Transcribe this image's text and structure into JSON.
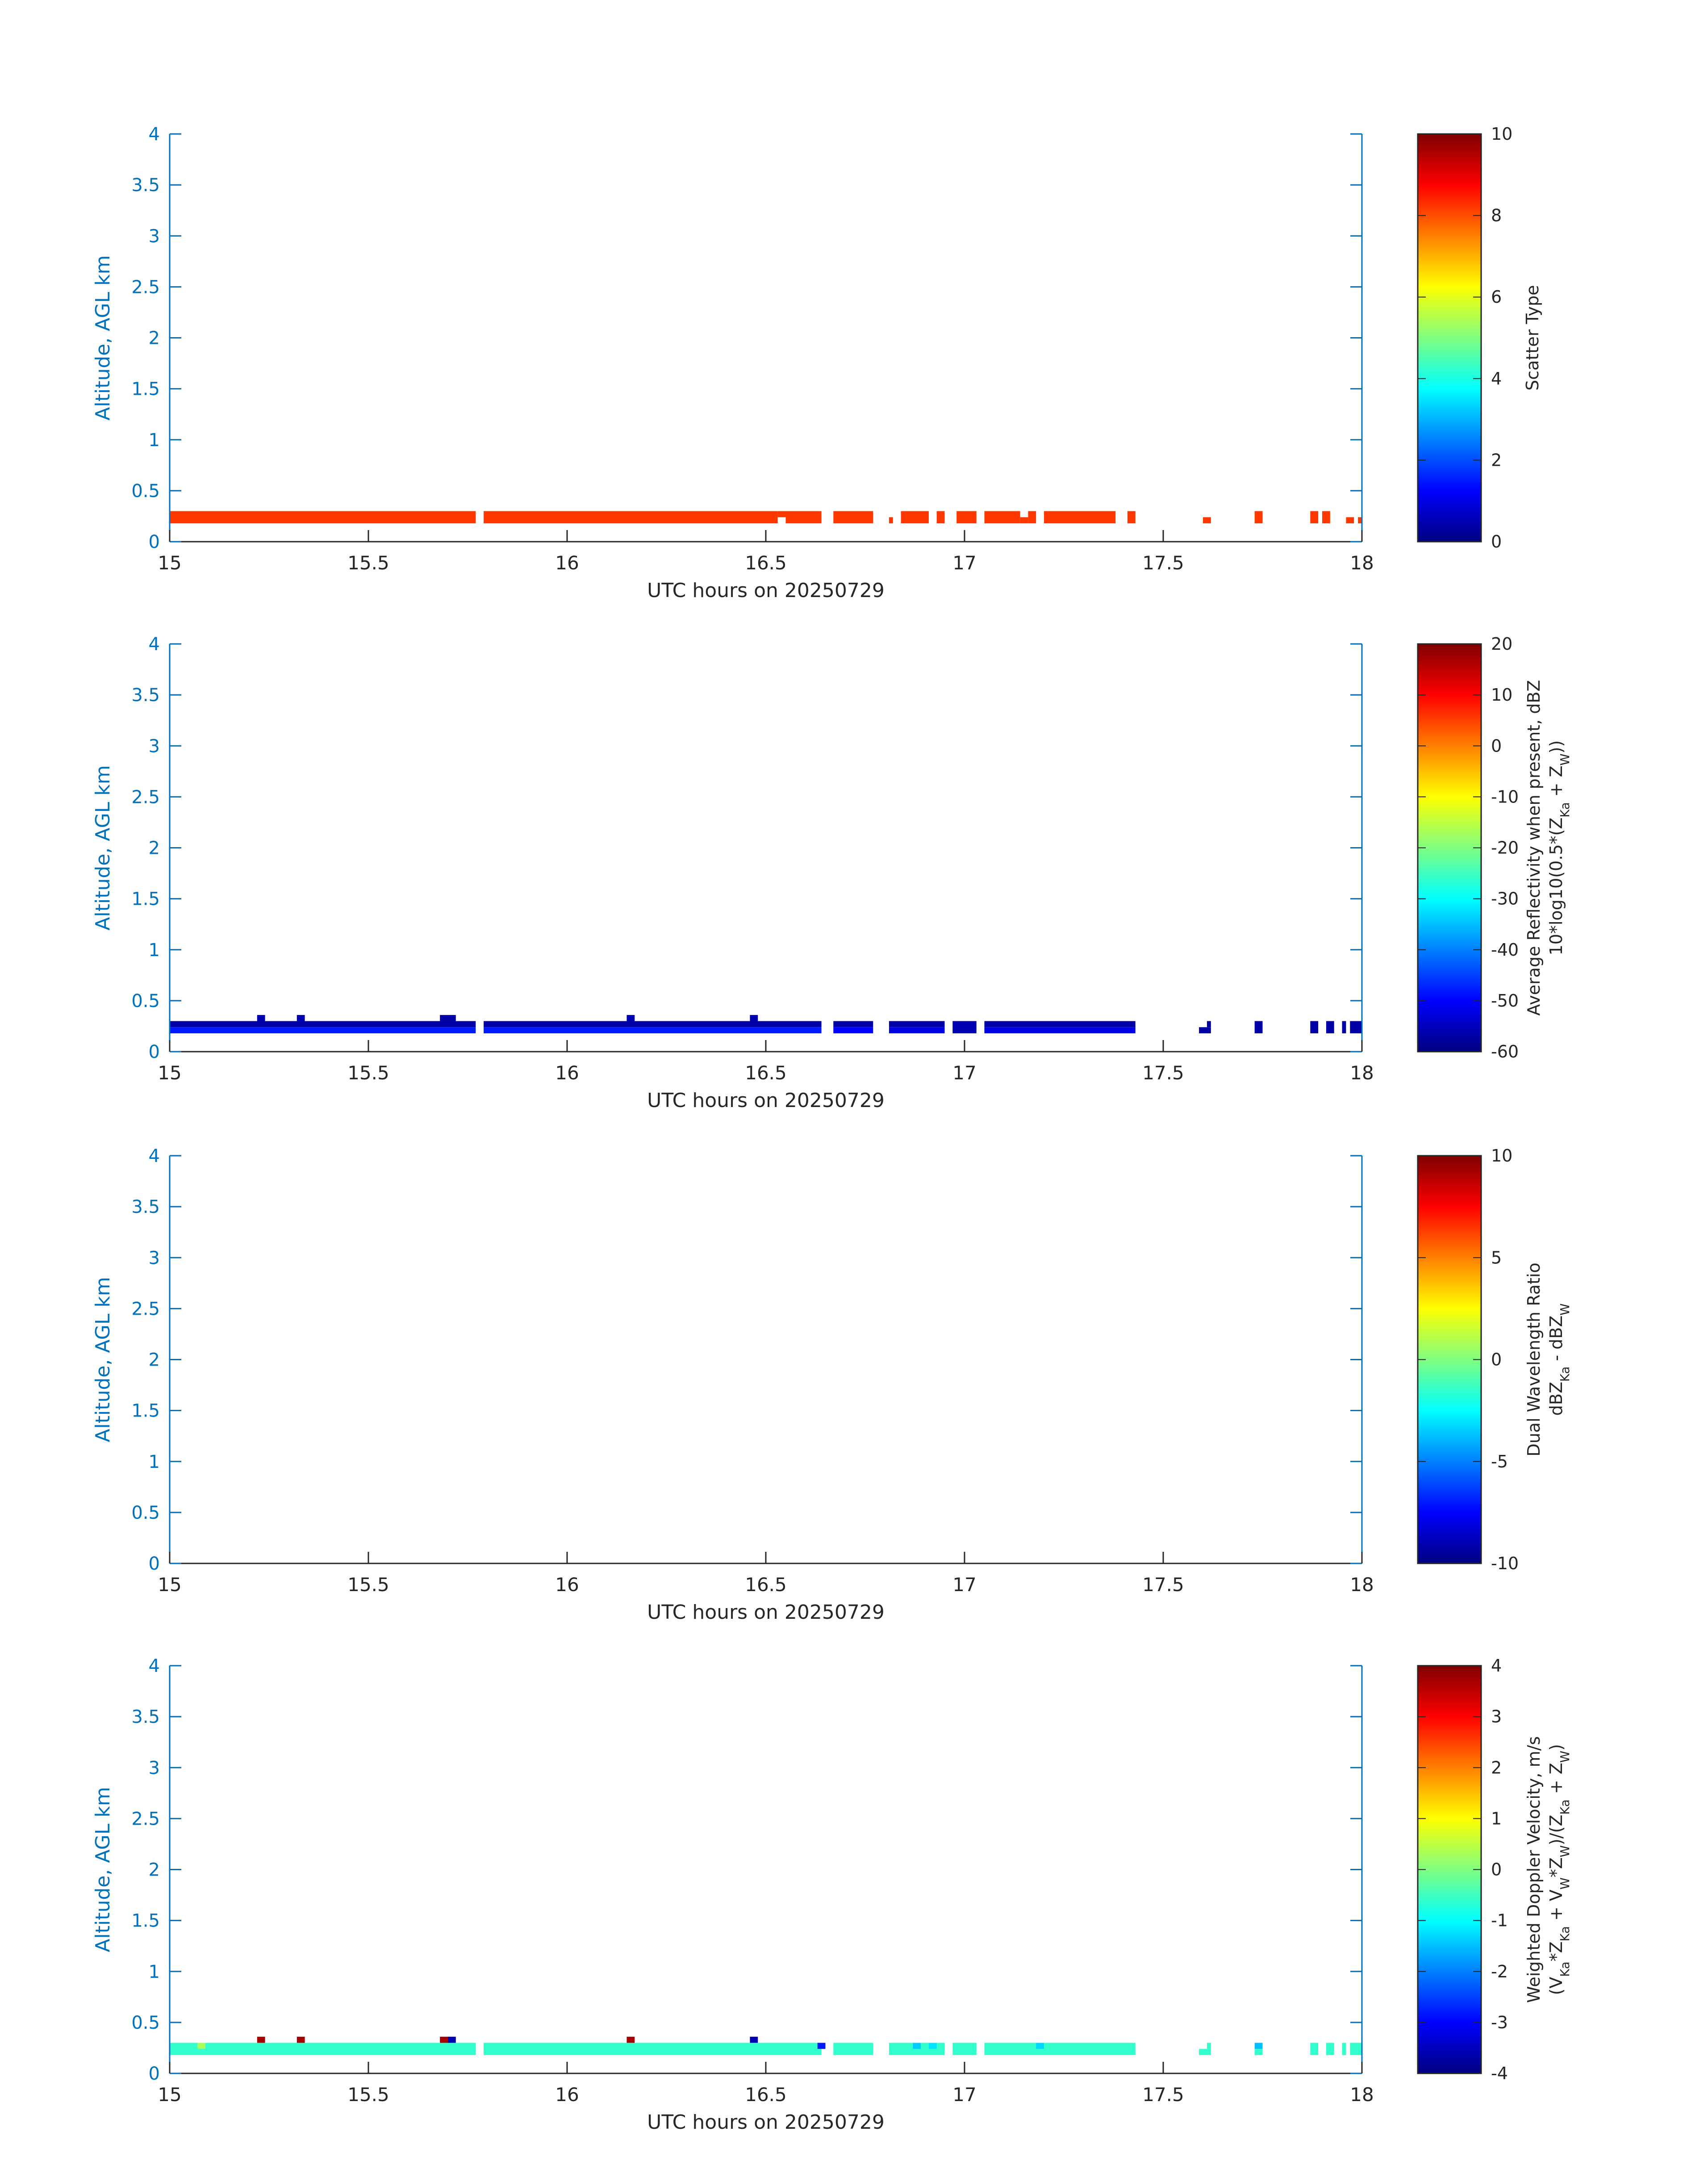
{
  "figure_date": "20250729",
  "chart_data": [
    {
      "type": "heatmap",
      "name": "scatter-type",
      "xlabel": "UTC hours on 20250729",
      "ylabel": "Altitude, AGL km",
      "xlim": [
        15,
        18
      ],
      "ylim": [
        0,
        4
      ],
      "x_ticks": [
        "15",
        "15.5",
        "16",
        "16.5",
        "17",
        "17.5",
        "18"
      ],
      "y_ticks": [
        "0",
        "0.5",
        "1",
        "1.5",
        "2",
        "2.5",
        "3",
        "3.5",
        "4"
      ],
      "colorbar": {
        "label_lines": [
          "Scatter Type"
        ],
        "clim": [
          0,
          10
        ],
        "ticks": [
          "0",
          "2",
          "4",
          "6",
          "8",
          "10"
        ]
      },
      "segments": [
        {
          "x0": 15.0,
          "x1": 15.77,
          "y0": 0.18,
          "y1": 0.3,
          "value": 8.2
        },
        {
          "x0": 15.79,
          "x1": 16.53,
          "y0": 0.18,
          "y1": 0.3,
          "value": 8.2
        },
        {
          "x0": 16.53,
          "x1": 16.55,
          "y0": 0.24,
          "y1": 0.3,
          "value": 8.2
        },
        {
          "x0": 16.55,
          "x1": 16.64,
          "y0": 0.18,
          "y1": 0.3,
          "value": 8.2
        },
        {
          "x0": 16.67,
          "x1": 16.77,
          "y0": 0.18,
          "y1": 0.3,
          "value": 8.2
        },
        {
          "x0": 16.81,
          "x1": 16.82,
          "y0": 0.18,
          "y1": 0.24,
          "value": 8.2
        },
        {
          "x0": 16.84,
          "x1": 16.91,
          "y0": 0.18,
          "y1": 0.3,
          "value": 8.2
        },
        {
          "x0": 16.93,
          "x1": 16.95,
          "y0": 0.18,
          "y1": 0.3,
          "value": 8.2
        },
        {
          "x0": 16.98,
          "x1": 17.03,
          "y0": 0.18,
          "y1": 0.3,
          "value": 8.2
        },
        {
          "x0": 17.05,
          "x1": 17.14,
          "y0": 0.18,
          "y1": 0.3,
          "value": 8.2
        },
        {
          "x0": 17.14,
          "x1": 17.16,
          "y0": 0.18,
          "y1": 0.24,
          "value": 8.2
        },
        {
          "x0": 17.16,
          "x1": 17.18,
          "y0": 0.18,
          "y1": 0.3,
          "value": 8.2
        },
        {
          "x0": 17.2,
          "x1": 17.38,
          "y0": 0.18,
          "y1": 0.3,
          "value": 8.2
        },
        {
          "x0": 17.41,
          "x1": 17.43,
          "y0": 0.18,
          "y1": 0.3,
          "value": 8.2
        },
        {
          "x0": 17.6,
          "x1": 17.62,
          "y0": 0.18,
          "y1": 0.24,
          "value": 8.2
        },
        {
          "x0": 17.73,
          "x1": 17.75,
          "y0": 0.18,
          "y1": 0.3,
          "value": 8.2
        },
        {
          "x0": 17.87,
          "x1": 17.89,
          "y0": 0.18,
          "y1": 0.3,
          "value": 8.2
        },
        {
          "x0": 17.9,
          "x1": 17.92,
          "y0": 0.18,
          "y1": 0.3,
          "value": 8.2
        },
        {
          "x0": 17.96,
          "x1": 17.98,
          "y0": 0.18,
          "y1": 0.24,
          "value": 8.2
        },
        {
          "x0": 17.99,
          "x1": 18.0,
          "y0": 0.18,
          "y1": 0.24,
          "value": 8.2
        }
      ]
    },
    {
      "type": "heatmap",
      "name": "reflectivity",
      "xlabel": "UTC hours on 20250729",
      "ylabel": "Altitude, AGL km",
      "xlim": [
        15,
        18
      ],
      "ylim": [
        0,
        4
      ],
      "x_ticks": [
        "15",
        "15.5",
        "16",
        "16.5",
        "17",
        "17.5",
        "18"
      ],
      "y_ticks": [
        "0",
        "0.5",
        "1",
        "1.5",
        "2",
        "2.5",
        "3",
        "3.5",
        "4"
      ],
      "colorbar": {
        "label_lines": [
          "Average Reflectivity when present, dBZ",
          "10*log10(0.5*(Z{sub:Ka} + Z{sub:W}))"
        ],
        "clim": [
          -60,
          20
        ],
        "ticks": [
          "-60",
          "-50",
          "-40",
          "-30",
          "-20",
          "-10",
          "0",
          "10",
          "20"
        ]
      },
      "segments": [
        {
          "x0": 15.0,
          "x1": 15.77,
          "y0": 0.24,
          "y1": 0.3,
          "value": -57
        },
        {
          "x0": 15.0,
          "x1": 15.77,
          "y0": 0.18,
          "y1": 0.24,
          "value": -48
        },
        {
          "x0": 15.79,
          "x1": 16.64,
          "y0": 0.24,
          "y1": 0.3,
          "value": -57
        },
        {
          "x0": 15.79,
          "x1": 16.64,
          "y0": 0.18,
          "y1": 0.24,
          "value": -48
        },
        {
          "x0": 16.67,
          "x1": 16.77,
          "y0": 0.24,
          "y1": 0.3,
          "value": -57
        },
        {
          "x0": 16.67,
          "x1": 16.77,
          "y0": 0.18,
          "y1": 0.24,
          "value": -50
        },
        {
          "x0": 16.81,
          "x1": 16.95,
          "y0": 0.24,
          "y1": 0.3,
          "value": -57
        },
        {
          "x0": 16.81,
          "x1": 16.95,
          "y0": 0.18,
          "y1": 0.24,
          "value": -52
        },
        {
          "x0": 16.97,
          "x1": 17.03,
          "y0": 0.18,
          "y1": 0.3,
          "value": -56
        },
        {
          "x0": 17.05,
          "x1": 17.43,
          "y0": 0.24,
          "y1": 0.3,
          "value": -57
        },
        {
          "x0": 17.05,
          "x1": 17.43,
          "y0": 0.18,
          "y1": 0.24,
          "value": -52
        },
        {
          "x0": 15.22,
          "x1": 15.24,
          "y0": 0.3,
          "y1": 0.36,
          "value": -56
        },
        {
          "x0": 15.32,
          "x1": 15.34,
          "y0": 0.3,
          "y1": 0.36,
          "value": -56
        },
        {
          "x0": 15.68,
          "x1": 15.72,
          "y0": 0.3,
          "y1": 0.36,
          "value": -57
        },
        {
          "x0": 16.15,
          "x1": 16.17,
          "y0": 0.3,
          "y1": 0.36,
          "value": -56
        },
        {
          "x0": 16.46,
          "x1": 16.48,
          "y0": 0.3,
          "y1": 0.36,
          "value": -56
        },
        {
          "x0": 17.59,
          "x1": 17.62,
          "y0": 0.18,
          "y1": 0.24,
          "value": -57
        },
        {
          "x0": 17.61,
          "x1": 17.62,
          "y0": 0.24,
          "y1": 0.3,
          "value": -57
        },
        {
          "x0": 17.73,
          "x1": 17.75,
          "y0": 0.18,
          "y1": 0.3,
          "value": -57
        },
        {
          "x0": 17.87,
          "x1": 17.89,
          "y0": 0.18,
          "y1": 0.3,
          "value": -57
        },
        {
          "x0": 17.91,
          "x1": 17.93,
          "y0": 0.18,
          "y1": 0.3,
          "value": -57
        },
        {
          "x0": 17.95,
          "x1": 17.96,
          "y0": 0.18,
          "y1": 0.3,
          "value": -57
        },
        {
          "x0": 17.97,
          "x1": 18.0,
          "y0": 0.18,
          "y1": 0.3,
          "value": -57
        }
      ]
    },
    {
      "type": "heatmap",
      "name": "dual-wavelength-ratio",
      "xlabel": "UTC hours on 20250729",
      "ylabel": "Altitude, AGL km",
      "xlim": [
        15,
        18
      ],
      "ylim": [
        0,
        4
      ],
      "x_ticks": [
        "15",
        "15.5",
        "16",
        "16.5",
        "17",
        "17.5",
        "18"
      ],
      "y_ticks": [
        "0",
        "0.5",
        "1",
        "1.5",
        "2",
        "2.5",
        "3",
        "3.5",
        "4"
      ],
      "colorbar": {
        "label_lines": [
          "Dual Wavelength Ratio",
          "dBZ{sub:Ka} - dBZ{sub:W}"
        ],
        "clim": [
          -10,
          10
        ],
        "ticks": [
          "-10",
          "-5",
          "0",
          "5",
          "10"
        ]
      },
      "segments": []
    },
    {
      "type": "heatmap",
      "name": "doppler-velocity",
      "xlabel": "UTC hours on 20250729",
      "ylabel": "Altitude, AGL km",
      "xlim": [
        15,
        18
      ],
      "ylim": [
        0,
        4
      ],
      "x_ticks": [
        "15",
        "15.5",
        "16",
        "16.5",
        "17",
        "17.5",
        "18"
      ],
      "y_ticks": [
        "0",
        "0.5",
        "1",
        "1.5",
        "2",
        "2.5",
        "3",
        "3.5",
        "4"
      ],
      "colorbar": {
        "label_lines": [
          "Weighted Doppler Velocity, m/s",
          "(V{sub:Ka}*Z{sub:Ka} + V{sub:W}*Z{sub:W})/(Z{sub:Ka} + Z{sub:W})"
        ],
        "clim": [
          -4,
          4
        ],
        "ticks": [
          "-4",
          "-3",
          "-2",
          "-1",
          "0",
          "1",
          "2",
          "3",
          "4"
        ]
      },
      "segments": [
        {
          "x0": 15.0,
          "x1": 15.77,
          "y0": 0.18,
          "y1": 0.3,
          "value": -0.6
        },
        {
          "x0": 15.79,
          "x1": 16.64,
          "y0": 0.18,
          "y1": 0.3,
          "value": -0.6
        },
        {
          "x0": 16.67,
          "x1": 16.77,
          "y0": 0.18,
          "y1": 0.3,
          "value": -0.6
        },
        {
          "x0": 16.81,
          "x1": 16.95,
          "y0": 0.18,
          "y1": 0.3,
          "value": -0.6
        },
        {
          "x0": 16.97,
          "x1": 17.03,
          "y0": 0.18,
          "y1": 0.3,
          "value": -0.6
        },
        {
          "x0": 17.05,
          "x1": 17.43,
          "y0": 0.18,
          "y1": 0.3,
          "value": -0.6
        },
        {
          "x0": 15.07,
          "x1": 15.09,
          "y0": 0.24,
          "y1": 0.3,
          "value": 0.3
        },
        {
          "x0": 16.87,
          "x1": 16.89,
          "y0": 0.24,
          "y1": 0.3,
          "value": -1.4
        },
        {
          "x0": 16.91,
          "x1": 16.93,
          "y0": 0.24,
          "y1": 0.3,
          "value": -1.2
        },
        {
          "x0": 17.18,
          "x1": 17.2,
          "y0": 0.24,
          "y1": 0.3,
          "value": -1.3
        },
        {
          "x0": 16.63,
          "x1": 16.65,
          "y0": 0.24,
          "y1": 0.3,
          "value": -2.8
        },
        {
          "x0": 15.22,
          "x1": 15.24,
          "y0": 0.3,
          "y1": 0.36,
          "value": 3.7
        },
        {
          "x0": 15.32,
          "x1": 15.34,
          "y0": 0.3,
          "y1": 0.36,
          "value": 3.7
        },
        {
          "x0": 15.68,
          "x1": 15.7,
          "y0": 0.3,
          "y1": 0.36,
          "value": 3.7
        },
        {
          "x0": 15.7,
          "x1": 15.72,
          "y0": 0.3,
          "y1": 0.36,
          "value": -3.6
        },
        {
          "x0": 16.15,
          "x1": 16.17,
          "y0": 0.3,
          "y1": 0.36,
          "value": 3.7
        },
        {
          "x0": 16.46,
          "x1": 16.48,
          "y0": 0.3,
          "y1": 0.36,
          "value": -3.6
        },
        {
          "x0": 17.59,
          "x1": 17.62,
          "y0": 0.18,
          "y1": 0.24,
          "value": -0.6
        },
        {
          "x0": 17.61,
          "x1": 17.62,
          "y0": 0.24,
          "y1": 0.3,
          "value": -0.6
        },
        {
          "x0": 17.73,
          "x1": 17.75,
          "y0": 0.18,
          "y1": 0.24,
          "value": -0.6
        },
        {
          "x0": 17.73,
          "x1": 17.75,
          "y0": 0.24,
          "y1": 0.3,
          "value": -1.5
        },
        {
          "x0": 17.87,
          "x1": 17.89,
          "y0": 0.18,
          "y1": 0.3,
          "value": -0.6
        },
        {
          "x0": 17.91,
          "x1": 17.93,
          "y0": 0.18,
          "y1": 0.3,
          "value": -0.6
        },
        {
          "x0": 17.95,
          "x1": 17.96,
          "y0": 0.18,
          "y1": 0.3,
          "value": -0.6
        },
        {
          "x0": 17.97,
          "x1": 18.0,
          "y0": 0.18,
          "y1": 0.3,
          "value": -0.6
        }
      ]
    }
  ]
}
